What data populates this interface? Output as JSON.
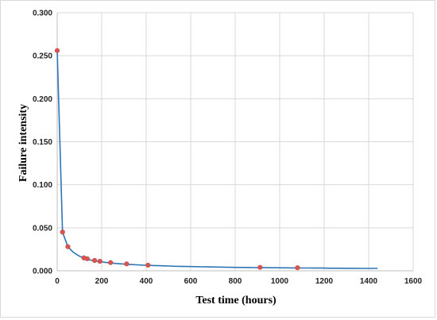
{
  "chart_data": {
    "type": "line",
    "title": "",
    "xlabel": "Test time (hours)",
    "ylabel": "Failure intensity",
    "xlim": [
      0,
      1600
    ],
    "ylim": [
      0,
      0.3
    ],
    "x_ticks": [
      0,
      200,
      400,
      600,
      800,
      1000,
      1200,
      1400,
      1600
    ],
    "x_tick_labels": [
      "0",
      "200",
      "400",
      "600",
      "800",
      "1000",
      "1200",
      "1400",
      "1600"
    ],
    "y_ticks": [
      0,
      0.05,
      0.1,
      0.15,
      0.2,
      0.25,
      0.3
    ],
    "y_tick_labels": [
      "0.000",
      "0.050",
      "0.100",
      "0.150",
      "0.200",
      "0.250",
      "0.300"
    ],
    "grid": true,
    "legend": "none",
    "series": [
      {
        "type": "line",
        "color": "#2e75b6",
        "x": [
          0,
          24,
          48,
          72,
          96,
          120,
          144,
          168,
          192,
          216,
          240,
          264,
          288,
          312,
          336,
          360,
          384,
          408,
          432,
          456,
          480,
          504,
          528,
          552,
          576,
          600,
          624,
          648,
          672,
          696,
          720,
          744,
          768,
          792,
          816,
          840,
          864,
          888,
          912,
          936,
          960,
          984,
          1008,
          1032,
          1056,
          1080,
          1104,
          1128,
          1152,
          1176,
          1200,
          1224,
          1248,
          1272,
          1296,
          1320,
          1344,
          1368,
          1392,
          1416,
          1440
        ],
        "y": [
          0.256,
          0.045,
          0.028,
          0.0215,
          0.0175,
          0.0145,
          0.0128,
          0.0115,
          0.0106,
          0.0098,
          0.0091,
          0.0085,
          0.008,
          0.0076,
          0.0072,
          0.0069,
          0.0066,
          0.0064,
          0.0061,
          0.0059,
          0.0057,
          0.0055,
          0.0053,
          0.0052,
          0.005,
          0.0049,
          0.0048,
          0.0046,
          0.0045,
          0.0044,
          0.0043,
          0.0042,
          0.0041,
          0.004,
          0.0039,
          0.0039,
          0.0038,
          0.0037,
          0.0036,
          0.0036,
          0.0035,
          0.0035,
          0.0034,
          0.0034,
          0.0033,
          0.0033,
          0.0032,
          0.0032,
          0.0031,
          0.0031,
          0.0031,
          0.003,
          0.003,
          0.003,
          0.0029,
          0.0029,
          0.0029,
          0.0028,
          0.0028,
          0.0028,
          0.0028
        ]
      },
      {
        "type": "scatter",
        "color": "#d9534f",
        "x": [
          0,
          24,
          48,
          120,
          135,
          168,
          192,
          240,
          312,
          408,
          912,
          1080
        ],
        "y": [
          0.256,
          0.045,
          0.028,
          0.015,
          0.014,
          0.012,
          0.011,
          0.0095,
          0.008,
          0.0065,
          0.004,
          0.0035
        ]
      }
    ]
  }
}
